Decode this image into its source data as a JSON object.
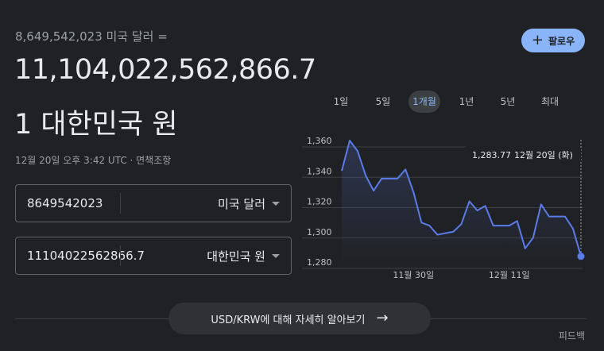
{
  "conversion": {
    "subtitle": "8,649,542,023 미국 달러 =",
    "result_value": "11,104,022,562,866.7",
    "target_unit": "1 대한민국 원",
    "timestamp": "12월 20일 오후 3:42 UTC · 면책조항"
  },
  "follow_button": {
    "icon": "plus-icon",
    "label": "팔로우"
  },
  "inputs": {
    "from": {
      "amount": "8649542023",
      "currency": "미국 달러"
    },
    "to": {
      "amount": "11104022562866.7",
      "currency": "대한민국 원"
    }
  },
  "tabs": [
    {
      "label": "1일",
      "active": false
    },
    {
      "label": "5일",
      "active": false
    },
    {
      "label": "1개월",
      "active": true
    },
    {
      "label": "1년",
      "active": false
    },
    {
      "label": "5년",
      "active": false
    },
    {
      "label": "최대",
      "active": false
    }
  ],
  "chart_data": {
    "type": "area",
    "y_ticks": [
      "1,360",
      "1,340",
      "1,320",
      "1,300",
      "1,280"
    ],
    "y_tick_values": [
      1360,
      1340,
      1320,
      1300,
      1280
    ],
    "ylim": [
      1280,
      1360
    ],
    "x_tick_labels": [
      "11월 30일",
      "12월 11일"
    ],
    "values": [
      1340,
      1360,
      1353,
      1337,
      1327,
      1335,
      1335,
      1335,
      1341,
      1326,
      1306,
      1304,
      1298,
      1299,
      1300,
      1305,
      1320,
      1314,
      1317,
      1304,
      1304,
      1304,
      1307,
      1289,
      1296,
      1318,
      1310,
      1310,
      1310,
      1302,
      1283.77
    ],
    "tooltip": {
      "value": "1,283.77",
      "date": "12월 20일 (화)"
    },
    "line_color": "#5a7be8",
    "grid": true
  },
  "learn_more": {
    "label": "USD/KRW에 대해 자세히 알아보기",
    "icon": "arrow-right-icon"
  },
  "feedback": "피드백"
}
